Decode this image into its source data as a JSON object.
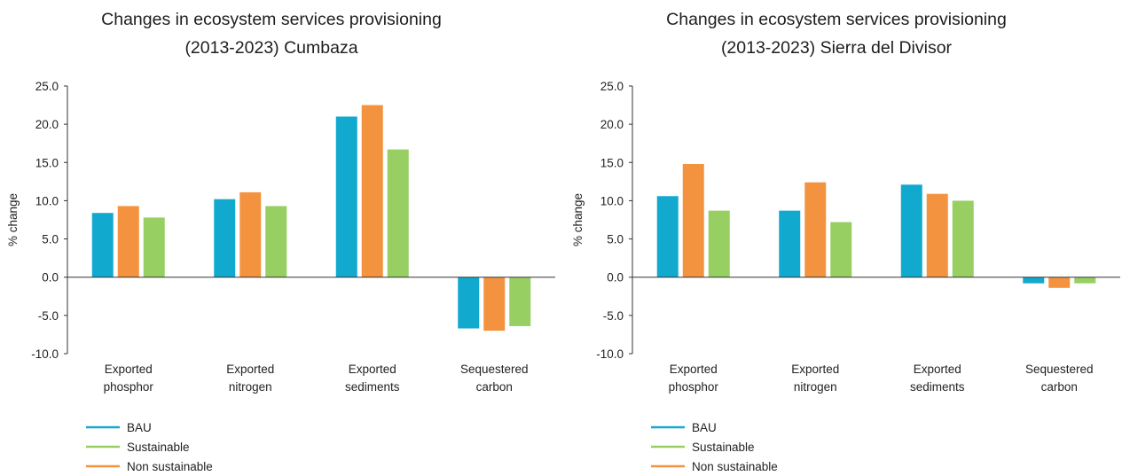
{
  "chart_data": [
    {
      "type": "bar",
      "title_lines": [
        "Changes in ecosystem services provisioning",
        "(2013-2023) Cumbaza"
      ],
      "ylabel": "% change",
      "xlabel": "",
      "ylim": [
        -10,
        25
      ],
      "yticks": [
        "25.0",
        "20.0",
        "15.0",
        "10.0",
        "5.0",
        "0.0",
        "-5.0",
        "-10.0"
      ],
      "categories": [
        [
          "Exported",
          "phosphor"
        ],
        [
          "Exported",
          "nitrogen"
        ],
        [
          "Exported",
          "sediments"
        ],
        [
          "Sequestered",
          "carbon"
        ]
      ],
      "series": [
        {
          "name": "BAU",
          "color": "#12a9cf",
          "values": [
            8.4,
            10.2,
            21.0,
            -6.7
          ]
        },
        {
          "name": "Non sustainable",
          "color": "#f4933f",
          "values": [
            9.3,
            11.1,
            22.5,
            -7.0
          ]
        },
        {
          "name": "Sustainable",
          "color": "#97cf62",
          "values": [
            7.8,
            9.3,
            16.7,
            -6.4
          ]
        }
      ],
      "legend": {
        "placement": "bottom-left",
        "order": [
          "BAU",
          "Sustainable",
          "Non sustainable"
        ]
      },
      "grid": false
    },
    {
      "type": "bar",
      "title_lines": [
        "Changes in ecosystem services provisioning",
        "(2013-2023) Sierra del Divisor"
      ],
      "ylabel": "% change",
      "xlabel": "",
      "ylim": [
        -10,
        25
      ],
      "yticks": [
        "25.0",
        "20.0",
        "15.0",
        "10.0",
        "5.0",
        "0.0",
        "-5.0",
        "-10.0"
      ],
      "categories": [
        [
          "Exported",
          "phosphor"
        ],
        [
          "Exported",
          "nitrogen"
        ],
        [
          "Exported",
          "sediments"
        ],
        [
          "Sequestered",
          "carbon"
        ]
      ],
      "series": [
        {
          "name": "BAU",
          "color": "#12a9cf",
          "values": [
            10.6,
            8.7,
            12.1,
            -0.8
          ]
        },
        {
          "name": "Non sustainable",
          "color": "#f4933f",
          "values": [
            14.8,
            12.4,
            10.9,
            -1.4
          ]
        },
        {
          "name": "Sustainable",
          "color": "#97cf62",
          "values": [
            8.7,
            7.2,
            10.0,
            -0.8
          ]
        }
      ],
      "legend": {
        "placement": "bottom-left",
        "order": [
          "BAU",
          "Sustainable",
          "Non sustainable"
        ]
      },
      "grid": false
    }
  ]
}
